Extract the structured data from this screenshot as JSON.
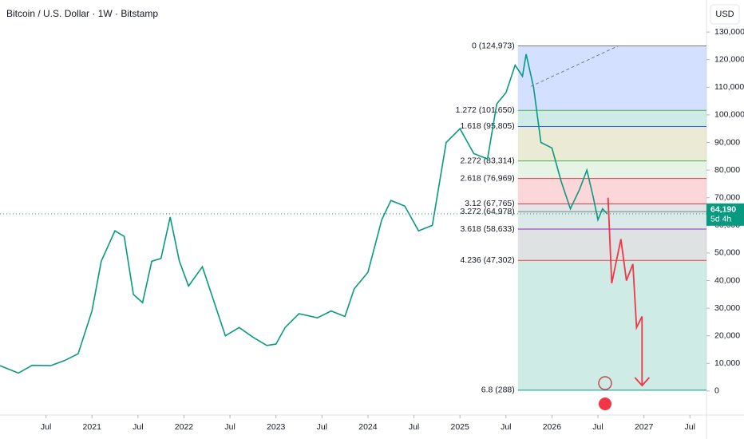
{
  "chart_data": {
    "type": "line",
    "title": "Bitcoin / U.S. Dollar · 1W · Bitstamp",
    "currency": "USD",
    "xlim": [
      2020.0,
      2027.68
    ],
    "ylim": [
      -8700,
      141600
    ],
    "xticks": [
      {
        "value": 2020.5,
        "label": "Jul"
      },
      2021,
      {
        "value": 2021.5,
        "label": "Jul"
      },
      2022,
      {
        "value": 2022.5,
        "label": "Jul"
      },
      2023,
      {
        "value": 2023.5,
        "label": "Jul"
      },
      2024,
      {
        "value": 2024.5,
        "label": "Jul"
      },
      2025,
      {
        "value": 2025.5,
        "label": "Jul"
      },
      2026,
      {
        "value": 2026.5,
        "label": "Jul"
      },
      2027,
      {
        "value": 2027.5,
        "label": "Jul"
      }
    ],
    "yticks": [
      0,
      {
        "value": 10000,
        "label": "10,000"
      },
      {
        "value": 20000,
        "label": "20,000"
      },
      {
        "value": 30000,
        "label": "30,000"
      },
      {
        "value": 40000,
        "label": "40,000"
      },
      {
        "value": 50000,
        "label": "50,000"
      },
      {
        "value": 60000,
        "label": "60,000"
      },
      {
        "value": 70000,
        "label": "70,000"
      },
      {
        "value": 80000,
        "label": "80,000"
      },
      {
        "value": 90000,
        "label": "90,000"
      },
      {
        "value": 100000,
        "label": "100,000"
      },
      {
        "value": 110000,
        "label": "110,000"
      },
      {
        "value": 120000,
        "label": "120,000"
      },
      {
        "value": 130000,
        "label": "130,000"
      }
    ],
    "series": [
      {
        "name": "BTCUSD",
        "color": "#089981",
        "x": [
          2020.0,
          2020.2,
          2020.35,
          2020.55,
          2020.7,
          2020.85,
          2021.0,
          2021.1,
          2021.25,
          2021.35,
          2021.45,
          2021.55,
          2021.65,
          2021.75,
          2021.85,
          2021.95,
          2022.05,
          2022.2,
          2022.35,
          2022.45,
          2022.6,
          2022.75,
          2022.9,
          2023.0,
          2023.1,
          2023.25,
          2023.45,
          2023.6,
          2023.75,
          2023.85,
          2024.0,
          2024.15,
          2024.25,
          2024.4,
          2024.55,
          2024.7,
          2024.85,
          2025.0,
          2025.15,
          2025.3,
          2025.4,
          2025.5,
          2025.6,
          2025.68,
          2025.72,
          2025.8,
          2025.88,
          2026.0,
          2026.1,
          2026.2,
          2026.3,
          2026.38,
          2026.45,
          2026.5,
          2026.55,
          2026.6
        ],
        "values": [
          9200,
          6500,
          9300,
          9200,
          11000,
          13500,
          29000,
          47000,
          58000,
          56000,
          35000,
          32000,
          47000,
          48000,
          63000,
          47000,
          38000,
          45000,
          30000,
          20000,
          23000,
          19500,
          16500,
          17000,
          23000,
          28000,
          26500,
          29000,
          27000,
          37000,
          43000,
          62000,
          69000,
          67000,
          58000,
          60000,
          90000,
          95000,
          86000,
          84000,
          104000,
          108000,
          118000,
          114000,
          122000,
          110000,
          90000,
          88000,
          76000,
          66000,
          73000,
          80000,
          70000,
          62000,
          66000,
          64190
        ]
      }
    ],
    "last_price": {
      "value": 64190,
      "label": "64,190",
      "countdown": "5d 4h"
    },
    "fib_start": 2025.63,
    "fib_levels": [
      {
        "label": "0 (124,973)",
        "value": 124973,
        "color": "#787b86",
        "fill": "#2962ff"
      },
      {
        "label": "1.272 (101,650)",
        "value": 101650,
        "color": "#4caf50",
        "fill": "#089981"
      },
      {
        "label": "1.618 (95,805)",
        "value": 95805,
        "color": "#2962ff",
        "fill": "#9c9a2f"
      },
      {
        "label": "2.272 (83,314)",
        "value": 83314,
        "color": "#4caf50",
        "fill": "#81c784"
      },
      {
        "label": "2.618 (76,969)",
        "value": 76969,
        "color": "#f23645",
        "fill": "#f23645"
      },
      {
        "label": "3.12 (67,765)",
        "value": 67765,
        "color": "#f23645",
        "fill": "#787b86"
      },
      {
        "label": "3.272 (64,978)",
        "value": 64978,
        "color": "#787b86",
        "fill": "#4a8f8f"
      },
      {
        "label": "3.618 (58,633)",
        "value": 58633,
        "color": "#9c27b0",
        "fill": "#5d6e6e"
      },
      {
        "label": "4.236 (47,302)",
        "value": 47302,
        "color": "#f23645",
        "fill": "#089981"
      },
      {
        "label": "6.8 (288)",
        "value": 288,
        "color": "#089981"
      }
    ],
    "projection": {
      "color": "#f23645",
      "x": [
        2026.61,
        2026.65,
        2026.75,
        2026.81,
        2026.88,
        2026.92,
        2026.98,
        2026.98
      ],
      "values": [
        70000,
        39000,
        55000,
        40000,
        46000,
        23000,
        27000,
        2000
      ]
    },
    "trend_line": {
      "color": "#787b86",
      "x": [
        2025.77,
        2026.72
      ],
      "values": [
        110300,
        124973
      ]
    }
  }
}
